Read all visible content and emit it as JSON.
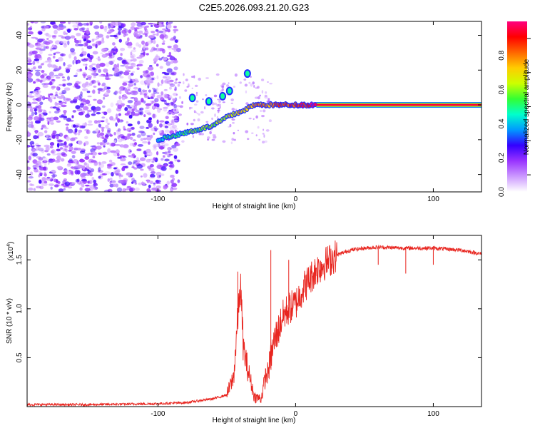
{
  "figure_title": "C2E5.2026.093.21.20.G23",
  "chart_data": [
    {
      "type": "heatmap",
      "name": "spectrogram",
      "xlabel": "Height of straight line (km)",
      "ylabel": "Frequency (Hz)",
      "xlim": [
        -195,
        135
      ],
      "ylim": [
        -50,
        48
      ],
      "xticks": [
        -100,
        0,
        100
      ],
      "xtick_labels": [
        "-100",
        "0",
        "100"
      ],
      "yticks": [
        40,
        20,
        0,
        -20,
        -40
      ],
      "ytick_labels": [
        "40",
        "20",
        "0",
        "-20",
        "-40"
      ],
      "noise_region_x": [
        -195,
        -88
      ],
      "carrier_track": [
        {
          "x": -100,
          "y": -20
        },
        {
          "x": -90,
          "y": -18
        },
        {
          "x": -80,
          "y": -16
        },
        {
          "x": -70,
          "y": -14
        },
        {
          "x": -60,
          "y": -12
        },
        {
          "x": -50,
          "y": -7
        },
        {
          "x": -40,
          "y": -4
        },
        {
          "x": -30,
          "y": 0
        },
        {
          "x": -20,
          "y": 0
        },
        {
          "x": -10,
          "y": 0
        },
        {
          "x": 0,
          "y": 0
        },
        {
          "x": 15,
          "y": 0
        },
        {
          "x": 135,
          "y": 0
        }
      ],
      "secondary_blobs": [
        {
          "x": -35,
          "y": 18
        },
        {
          "x": -48,
          "y": 8
        },
        {
          "x": -53,
          "y": 5
        },
        {
          "x": -75,
          "y": 4
        },
        {
          "x": -63,
          "y": 2
        }
      ],
      "colorbar": {
        "label": "Normalized spectral amplitude",
        "range": [
          0.0,
          1.0
        ],
        "ticks": [
          0.0,
          0.2,
          0.4,
          0.6,
          0.8
        ],
        "tick_labels": [
          "0.0",
          "0.2",
          "0.4",
          "0.6",
          "0.8"
        ],
        "colors": [
          "#ffffff",
          "#cc99ff",
          "#9933ff",
          "#3300ff",
          "#0099ff",
          "#00ffcc",
          "#33ff33",
          "#ccff00",
          "#ffcc00",
          "#ff6600",
          "#ff0000",
          "#ff0080"
        ]
      }
    },
    {
      "type": "line",
      "name": "snr",
      "xlabel": "Height of straight line (km)",
      "ylabel": "SNR (10 * v/v)",
      "y_multiplier_label": "(x10",
      "y_multiplier_exponent": "4",
      "xlim": [
        -195,
        135
      ],
      "ylim": [
        0,
        1.75
      ],
      "xticks": [
        -100,
        0,
        100
      ],
      "xtick_labels": [
        "-100",
        "0",
        "100"
      ],
      "yticks": [
        0.5,
        1.0,
        1.5
      ],
      "ytick_labels": [
        "0.5",
        "1.0",
        "1.5"
      ],
      "color": "#e8251f",
      "series": [
        {
          "name": "SNR",
          "x": [
            -195,
            -150,
            -100,
            -80,
            -70,
            -60,
            -50,
            -45,
            -42,
            -40,
            -38,
            -35,
            -30,
            -25,
            -22,
            -20,
            -18,
            -15,
            -12,
            -10,
            -8,
            -5,
            0,
            5,
            10,
            15,
            20,
            25,
            30,
            40,
            50,
            60,
            80,
            100,
            120,
            135
          ],
          "y": [
            0.02,
            0.02,
            0.03,
            0.04,
            0.06,
            0.08,
            0.12,
            0.3,
            0.9,
            1.25,
            0.6,
            0.4,
            0.1,
            0.08,
            0.3,
            0.35,
            0.5,
            0.7,
            0.8,
            0.9,
            0.95,
            1.0,
            1.05,
            1.2,
            1.3,
            1.4,
            1.45,
            1.5,
            1.55,
            1.6,
            1.62,
            1.63,
            1.62,
            1.62,
            1.6,
            1.56
          ]
        }
      ],
      "spikes": [
        {
          "x": -42,
          "y": 1.38
        },
        {
          "x": -18,
          "y": 1.6
        },
        {
          "x": -5,
          "y": 1.5
        }
      ],
      "dips": [
        {
          "x": 60,
          "y": 1.45
        },
        {
          "x": 80,
          "y": 1.36
        },
        {
          "x": 100,
          "y": 1.45
        }
      ]
    }
  ]
}
